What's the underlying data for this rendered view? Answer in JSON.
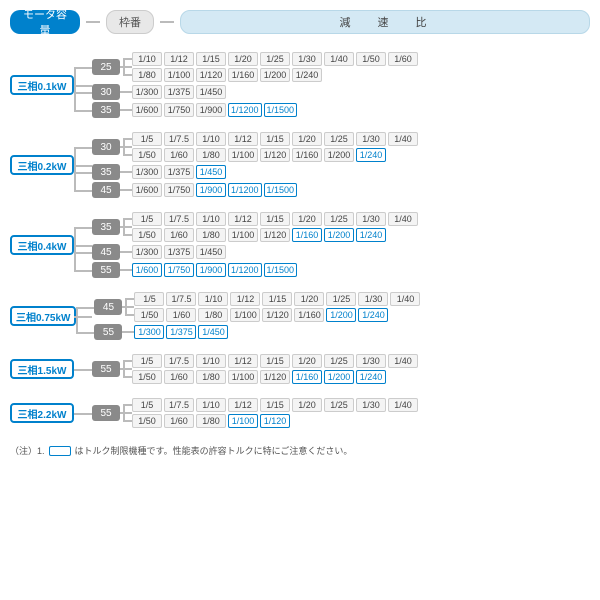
{
  "header": {
    "motor": "モータ容量",
    "frame": "枠番",
    "ratio": "減 速 比"
  },
  "colors": {
    "blue": "#0081cc",
    "gray_box": "#8a8a8a",
    "line": "#bbb",
    "hdr_bg": "#d4e9f4"
  },
  "note": {
    "prefix": "（注）1.",
    "suffix": "はトルク制限機種です。性能表の許容トルクに特にご注意ください。"
  },
  "groups": [
    {
      "motor": "三相0.1kW",
      "frames": [
        {
          "f": "25",
          "lines": [
            [
              {
                "v": "1/10",
                "b": 0
              },
              {
                "v": "1/12",
                "b": 0
              },
              {
                "v": "1/15",
                "b": 0
              },
              {
                "v": "1/20",
                "b": 0
              },
              {
                "v": "1/25",
                "b": 0
              },
              {
                "v": "1/30",
                "b": 0
              },
              {
                "v": "1/40",
                "b": 0
              },
              {
                "v": "1/50",
                "b": 0
              },
              {
                "v": "1/60",
                "b": 0
              }
            ],
            [
              {
                "v": "1/80",
                "b": 0
              },
              {
                "v": "1/100",
                "b": 0
              },
              {
                "v": "1/120",
                "b": 0
              },
              {
                "v": "1/160",
                "b": 0
              },
              {
                "v": "1/200",
                "b": 0
              },
              {
                "v": "1/240",
                "b": 0
              }
            ]
          ]
        },
        {
          "f": "30",
          "lines": [
            [
              {
                "v": "1/300",
                "b": 0
              },
              {
                "v": "1/375",
                "b": 0
              },
              {
                "v": "1/450",
                "b": 0
              }
            ]
          ]
        },
        {
          "f": "35",
          "lines": [
            [
              {
                "v": "1/600",
                "b": 0
              },
              {
                "v": "1/750",
                "b": 0
              },
              {
                "v": "1/900",
                "b": 0
              },
              {
                "v": "1/1200",
                "b": 1
              },
              {
                "v": "1/1500",
                "b": 1
              }
            ]
          ]
        }
      ]
    },
    {
      "motor": "三相0.2kW",
      "frames": [
        {
          "f": "30",
          "lines": [
            [
              {
                "v": "1/5",
                "b": 0
              },
              {
                "v": "1/7.5",
                "b": 0
              },
              {
                "v": "1/10",
                "b": 0
              },
              {
                "v": "1/12",
                "b": 0
              },
              {
                "v": "1/15",
                "b": 0
              },
              {
                "v": "1/20",
                "b": 0
              },
              {
                "v": "1/25",
                "b": 0
              },
              {
                "v": "1/30",
                "b": 0
              },
              {
                "v": "1/40",
                "b": 0
              }
            ],
            [
              {
                "v": "1/50",
                "b": 0
              },
              {
                "v": "1/60",
                "b": 0
              },
              {
                "v": "1/80",
                "b": 0
              },
              {
                "v": "1/100",
                "b": 0
              },
              {
                "v": "1/120",
                "b": 0
              },
              {
                "v": "1/160",
                "b": 0
              },
              {
                "v": "1/200",
                "b": 0
              },
              {
                "v": "1/240",
                "b": 1
              }
            ]
          ]
        },
        {
          "f": "35",
          "lines": [
            [
              {
                "v": "1/300",
                "b": 0
              },
              {
                "v": "1/375",
                "b": 0
              },
              {
                "v": "1/450",
                "b": 1
              }
            ]
          ]
        },
        {
          "f": "45",
          "lines": [
            [
              {
                "v": "1/600",
                "b": 0
              },
              {
                "v": "1/750",
                "b": 0
              },
              {
                "v": "1/900",
                "b": 1
              },
              {
                "v": "1/1200",
                "b": 1
              },
              {
                "v": "1/1500",
                "b": 1
              }
            ]
          ]
        }
      ]
    },
    {
      "motor": "三相0.4kW",
      "frames": [
        {
          "f": "35",
          "lines": [
            [
              {
                "v": "1/5",
                "b": 0
              },
              {
                "v": "1/7.5",
                "b": 0
              },
              {
                "v": "1/10",
                "b": 0
              },
              {
                "v": "1/12",
                "b": 0
              },
              {
                "v": "1/15",
                "b": 0
              },
              {
                "v": "1/20",
                "b": 0
              },
              {
                "v": "1/25",
                "b": 0
              },
              {
                "v": "1/30",
                "b": 0
              },
              {
                "v": "1/40",
                "b": 0
              }
            ],
            [
              {
                "v": "1/50",
                "b": 0
              },
              {
                "v": "1/60",
                "b": 0
              },
              {
                "v": "1/80",
                "b": 0
              },
              {
                "v": "1/100",
                "b": 0
              },
              {
                "v": "1/120",
                "b": 0
              },
              {
                "v": "1/160",
                "b": 1
              },
              {
                "v": "1/200",
                "b": 1
              },
              {
                "v": "1/240",
                "b": 1
              }
            ]
          ]
        },
        {
          "f": "45",
          "lines": [
            [
              {
                "v": "1/300",
                "b": 0
              },
              {
                "v": "1/375",
                "b": 0
              },
              {
                "v": "1/450",
                "b": 0
              }
            ]
          ]
        },
        {
          "f": "55",
          "lines": [
            [
              {
                "v": "1/600",
                "b": 1
              },
              {
                "v": "1/750",
                "b": 1
              },
              {
                "v": "1/900",
                "b": 1
              },
              {
                "v": "1/1200",
                "b": 1
              },
              {
                "v": "1/1500",
                "b": 1
              }
            ]
          ]
        }
      ]
    },
    {
      "motor": "三相0.75kW",
      "frames": [
        {
          "f": "45",
          "lines": [
            [
              {
                "v": "1/5",
                "b": 0
              },
              {
                "v": "1/7.5",
                "b": 0
              },
              {
                "v": "1/10",
                "b": 0
              },
              {
                "v": "1/12",
                "b": 0
              },
              {
                "v": "1/15",
                "b": 0
              },
              {
                "v": "1/20",
                "b": 0
              },
              {
                "v": "1/25",
                "b": 0
              },
              {
                "v": "1/30",
                "b": 0
              },
              {
                "v": "1/40",
                "b": 0
              }
            ],
            [
              {
                "v": "1/50",
                "b": 0
              },
              {
                "v": "1/60",
                "b": 0
              },
              {
                "v": "1/80",
                "b": 0
              },
              {
                "v": "1/100",
                "b": 0
              },
              {
                "v": "1/120",
                "b": 0
              },
              {
                "v": "1/160",
                "b": 0
              },
              {
                "v": "1/200",
                "b": 1
              },
              {
                "v": "1/240",
                "b": 1
              }
            ]
          ]
        },
        {
          "f": "55",
          "lines": [
            [
              {
                "v": "1/300",
                "b": 1
              },
              {
                "v": "1/375",
                "b": 1
              },
              {
                "v": "1/450",
                "b": 1
              }
            ]
          ]
        }
      ]
    },
    {
      "motor": "三相1.5kW",
      "frames": [
        {
          "f": "55",
          "lines": [
            [
              {
                "v": "1/5",
                "b": 0
              },
              {
                "v": "1/7.5",
                "b": 0
              },
              {
                "v": "1/10",
                "b": 0
              },
              {
                "v": "1/12",
                "b": 0
              },
              {
                "v": "1/15",
                "b": 0
              },
              {
                "v": "1/20",
                "b": 0
              },
              {
                "v": "1/25",
                "b": 0
              },
              {
                "v": "1/30",
                "b": 0
              },
              {
                "v": "1/40",
                "b": 0
              }
            ],
            [
              {
                "v": "1/50",
                "b": 0
              },
              {
                "v": "1/60",
                "b": 0
              },
              {
                "v": "1/80",
                "b": 0
              },
              {
                "v": "1/100",
                "b": 0
              },
              {
                "v": "1/120",
                "b": 0
              },
              {
                "v": "1/160",
                "b": 1
              },
              {
                "v": "1/200",
                "b": 1
              },
              {
                "v": "1/240",
                "b": 1
              }
            ]
          ]
        }
      ]
    },
    {
      "motor": "三相2.2kW",
      "frames": [
        {
          "f": "55",
          "lines": [
            [
              {
                "v": "1/5",
                "b": 0
              },
              {
                "v": "1/7.5",
                "b": 0
              },
              {
                "v": "1/10",
                "b": 0
              },
              {
                "v": "1/12",
                "b": 0
              },
              {
                "v": "1/15",
                "b": 0
              },
              {
                "v": "1/20",
                "b": 0
              },
              {
                "v": "1/25",
                "b": 0
              },
              {
                "v": "1/30",
                "b": 0
              },
              {
                "v": "1/40",
                "b": 0
              }
            ],
            [
              {
                "v": "1/50",
                "b": 0
              },
              {
                "v": "1/60",
                "b": 0
              },
              {
                "v": "1/80",
                "b": 0
              },
              {
                "v": "1/100",
                "b": 1
              },
              {
                "v": "1/120",
                "b": 1
              }
            ]
          ]
        }
      ]
    }
  ]
}
